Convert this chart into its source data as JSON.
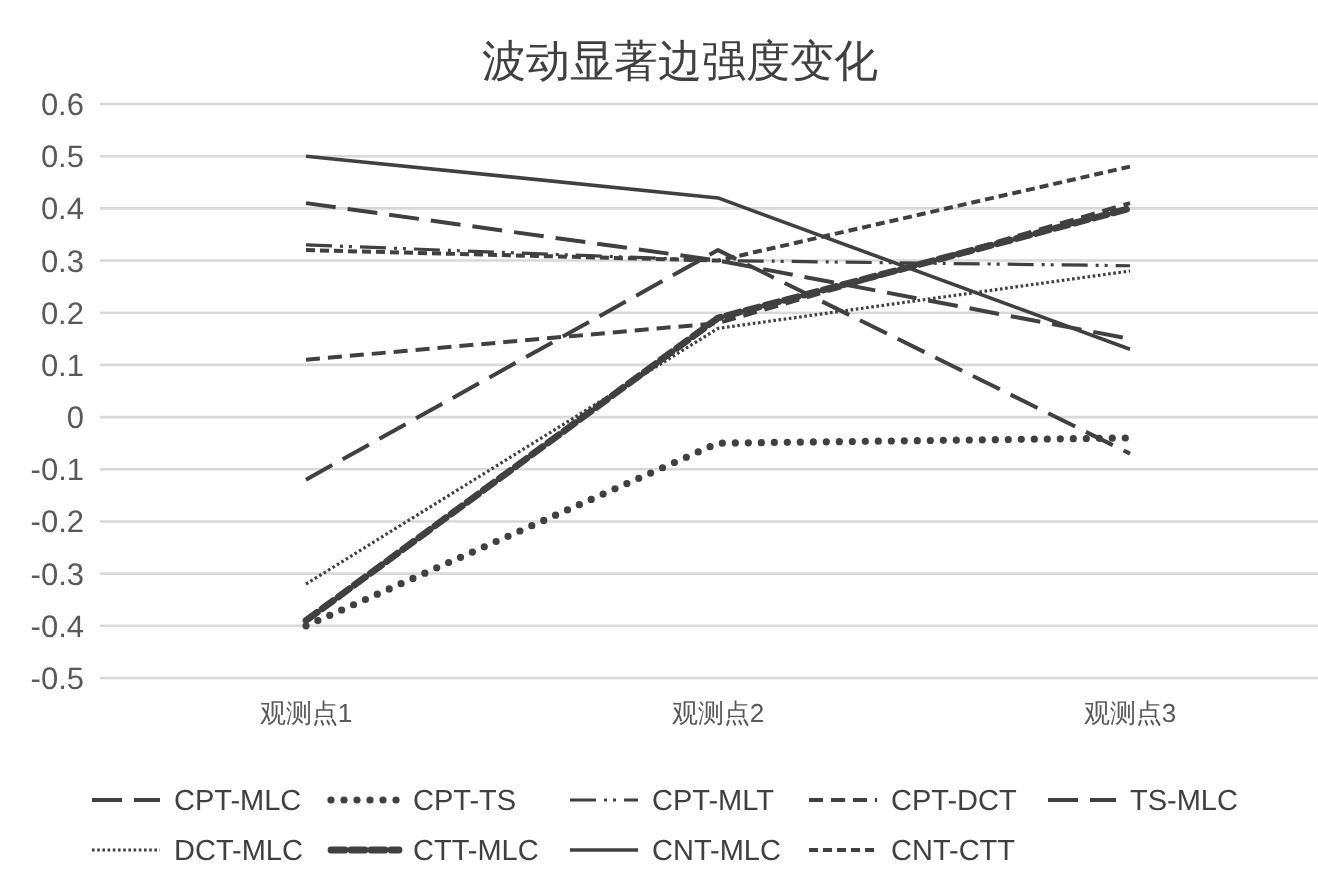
{
  "chart_data": {
    "type": "line",
    "title": "波动显著边强度变化",
    "categories": [
      "观测点1",
      "观测点2",
      "观测点3"
    ],
    "ylim": [
      -0.5,
      0.6
    ],
    "yticks": [
      -0.5,
      -0.4,
      -0.3,
      -0.2,
      -0.1,
      0,
      0.1,
      0.2,
      0.3,
      0.4,
      0.5,
      0.6
    ],
    "grid": "y",
    "legend": "bottom",
    "series": [
      {
        "name": "CPT-MLC",
        "color": "#404040",
        "line_style": "longdash",
        "values": [
          0.41,
          0.3,
          0.15
        ]
      },
      {
        "name": "CPT-TS",
        "color": "#404040",
        "line_style": "dotted",
        "values": [
          -0.4,
          -0.05,
          -0.04
        ]
      },
      {
        "name": "CPT-MLT",
        "color": "#404040",
        "line_style": "dashdotdot",
        "values": [
          0.33,
          0.3,
          0.29
        ]
      },
      {
        "name": "CPT-DCT",
        "color": "#404040",
        "line_style": "dashed",
        "values": [
          0.11,
          0.18,
          0.41
        ]
      },
      {
        "name": "TS-MLC",
        "color": "#404040",
        "line_style": "longdash",
        "values": [
          -0.12,
          0.32,
          -0.07
        ]
      },
      {
        "name": "DCT-MLC",
        "color": "#404040",
        "line_style": "finedotted",
        "values": [
          -0.32,
          0.17,
          0.28
        ]
      },
      {
        "name": "CTT-MLC",
        "color": "#404040",
        "line_style": "doubledash",
        "values": [
          -0.39,
          0.19,
          0.4
        ]
      },
      {
        "name": "CNT-MLC",
        "color": "#404040",
        "line_style": "solid",
        "values": [
          0.5,
          0.42,
          0.13
        ]
      },
      {
        "name": "CNT-CTT",
        "color": "#404040",
        "line_style": "densedashed",
        "values": [
          0.32,
          0.3,
          0.48
        ]
      }
    ]
  }
}
